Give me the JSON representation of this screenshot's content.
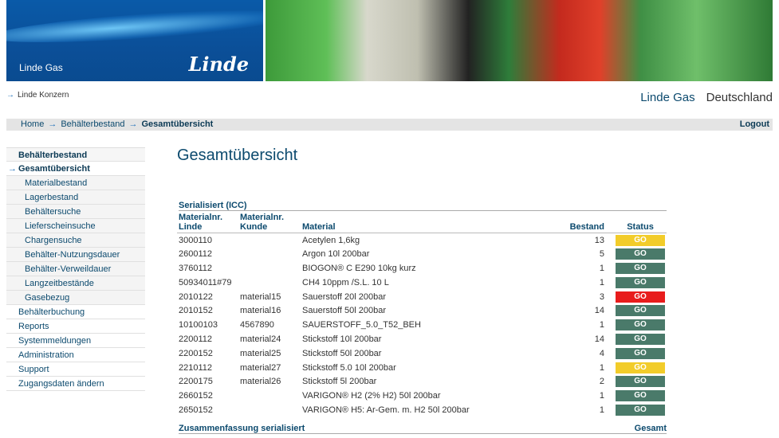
{
  "header": {
    "brand_sub": "Linde Gas",
    "logo": "Linde",
    "konzern_link": "Linde Konzern",
    "site_name": "Linde Gas",
    "country": "Deutschland"
  },
  "breadcrumb": {
    "items": [
      "Home",
      "Behälterbestand"
    ],
    "current": "Gesamtübersicht",
    "logout": "Logout"
  },
  "sidebar": {
    "items": [
      {
        "label": "Behälterbestand",
        "type": "head"
      },
      {
        "label": "Gesamtübersicht",
        "type": "active"
      },
      {
        "label": "Materialbestand",
        "type": "sub"
      },
      {
        "label": "Lagerbestand",
        "type": "sub"
      },
      {
        "label": "Behältersuche",
        "type": "sub"
      },
      {
        "label": "Lieferscheinsuche",
        "type": "sub"
      },
      {
        "label": "Chargensuche",
        "type": "sub"
      },
      {
        "label": "Behälter-Nutzungsdauer",
        "type": "sub"
      },
      {
        "label": "Behälter-Verweildauer",
        "type": "sub"
      },
      {
        "label": "Langzeitbestände",
        "type": "sub"
      },
      {
        "label": "Gasebezug",
        "type": "sub"
      },
      {
        "label": "Behälterbuchung",
        "type": "top"
      },
      {
        "label": "Reports",
        "type": "top"
      },
      {
        "label": "Systemmeldungen",
        "type": "top"
      },
      {
        "label": "Administration",
        "type": "top"
      },
      {
        "label": "Support",
        "type": "top"
      },
      {
        "label": "Zugangsdaten ändern",
        "type": "top"
      }
    ]
  },
  "main": {
    "title": "Gesamtübersicht",
    "section": "Serialisiert (ICC)",
    "columns": {
      "linde": "Materialnr. Linde",
      "kunde": "Materialnr. Kunde",
      "material": "Material",
      "bestand": "Bestand",
      "status": "Status"
    },
    "colors": {
      "green": "#4a7a6a",
      "yellow": "#f2cc2a",
      "red": "#e81c1c"
    },
    "rows": [
      {
        "linde": "3000110",
        "kunde": "",
        "material": "Acetylen 1,6kg",
        "bestand": "13",
        "status": "GO",
        "color": "yellow"
      },
      {
        "linde": "2600112",
        "kunde": "",
        "material": "Argon 10l 200bar",
        "bestand": "5",
        "status": "GO",
        "color": "green"
      },
      {
        "linde": "3760112",
        "kunde": "",
        "material": "BIOGON® C E290 10kg kurz",
        "bestand": "1",
        "status": "GO",
        "color": "green"
      },
      {
        "linde": "50934011#79",
        "kunde": "",
        "material": "CH4 10ppm /S.L. 10 L",
        "bestand": "1",
        "status": "GO",
        "color": "green"
      },
      {
        "linde": "2010122",
        "kunde": "material15",
        "material": "Sauerstoff 20l 200bar",
        "bestand": "3",
        "status": "GO",
        "color": "red"
      },
      {
        "linde": "2010152",
        "kunde": "material16",
        "material": "Sauerstoff 50l 200bar",
        "bestand": "14",
        "status": "GO",
        "color": "green"
      },
      {
        "linde": "10100103",
        "kunde": "4567890",
        "material": "SAUERSTOFF_5.0_T52_BEH",
        "bestand": "1",
        "status": "GO",
        "color": "green"
      },
      {
        "linde": "2200112",
        "kunde": "material24",
        "material": "Stickstoff 10l 200bar",
        "bestand": "14",
        "status": "GO",
        "color": "green"
      },
      {
        "linde": "2200152",
        "kunde": "material25",
        "material": "Stickstoff 50l 200bar",
        "bestand": "4",
        "status": "GO",
        "color": "green"
      },
      {
        "linde": "2210112",
        "kunde": "material27",
        "material": "Stickstoff 5.0 10l 200bar",
        "bestand": "1",
        "status": "GO",
        "color": "yellow"
      },
      {
        "linde": "2200175",
        "kunde": "material26",
        "material": "Stickstoff 5l 200bar",
        "bestand": "2",
        "status": "GO",
        "color": "green"
      },
      {
        "linde": "2660152",
        "kunde": "",
        "material": "VARIGON® H2 (2% H2) 50l 200bar",
        "bestand": "1",
        "status": "GO",
        "color": "green"
      },
      {
        "linde": "2650152",
        "kunde": "",
        "material": "VARIGON® H5: Ar-Gem. m. H2 50l 200bar",
        "bestand": "1",
        "status": "GO",
        "color": "green"
      }
    ],
    "summary": {
      "label": "Zusammenfassung serialisiert",
      "total": "Gesamt"
    }
  }
}
